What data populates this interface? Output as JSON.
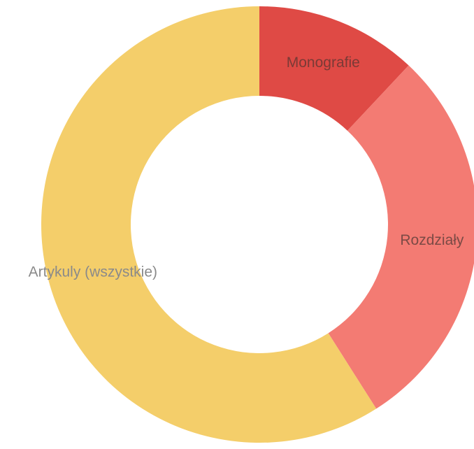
{
  "chart_data": {
    "type": "pie",
    "donut": true,
    "title": "",
    "legend": "none",
    "slices": [
      {
        "label": "Monografie",
        "value": 12,
        "color": "#df4a45",
        "label_color": "#7a3a36"
      },
      {
        "label": "Rozdziały",
        "value": 29,
        "color": "#f37b73",
        "label_color": "#7b4a45"
      },
      {
        "label": "Artykuly (wszystkie)",
        "value": 59,
        "color": "#f4ce6a",
        "label_color": "#8a8a8a"
      }
    ]
  }
}
